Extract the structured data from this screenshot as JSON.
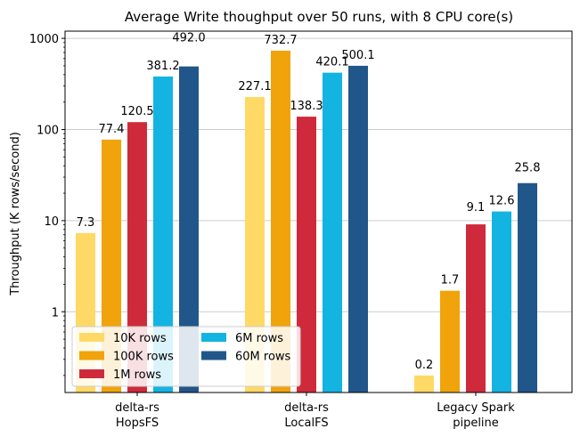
{
  "chart_data": {
    "type": "bar",
    "title": "Average Write thoughput over 50 runs, with 8 CPU core(s)",
    "xlabel": "",
    "ylabel": "Throughput (K rows/second)",
    "yscale": "log",
    "ylim": [
      0.13,
      1200
    ],
    "yticks": [
      1,
      10,
      100,
      1000
    ],
    "ytick_labels": [
      "1",
      "10",
      "100",
      "1000"
    ],
    "grid": "y-major",
    "categories": [
      [
        "delta-rs",
        "HopsFS"
      ],
      [
        "delta-rs",
        "LocalFS"
      ],
      [
        "Legacy Spark",
        "pipeline"
      ]
    ],
    "series": [
      {
        "name": "10K rows",
        "color": "#FFD966",
        "values": [
          7.3,
          227.1,
          0.2
        ],
        "labels": [
          "7.3",
          "227.1",
          "0.2"
        ]
      },
      {
        "name": "100K rows",
        "color": "#F0A30A",
        "values": [
          77.4,
          732.7,
          1.7
        ],
        "labels": [
          "77.4",
          "732.7",
          "1.7"
        ]
      },
      {
        "name": "1M rows",
        "color": "#CF2A3B",
        "values": [
          120.5,
          138.3,
          9.1
        ],
        "labels": [
          "120.5",
          "138.3",
          "9.1"
        ]
      },
      {
        "name": "6M rows",
        "color": "#13B4E2",
        "values": [
          381.2,
          420.1,
          12.6
        ],
        "labels": [
          "381.2",
          "420.1",
          "12.6"
        ]
      },
      {
        "name": "60M rows",
        "color": "#21568A",
        "values": [
          492.0,
          500.1,
          25.8
        ],
        "labels": [
          "492.0",
          "500.1",
          "25.8"
        ]
      }
    ],
    "legend": {
      "position": "lower-left",
      "columns": 2
    }
  }
}
